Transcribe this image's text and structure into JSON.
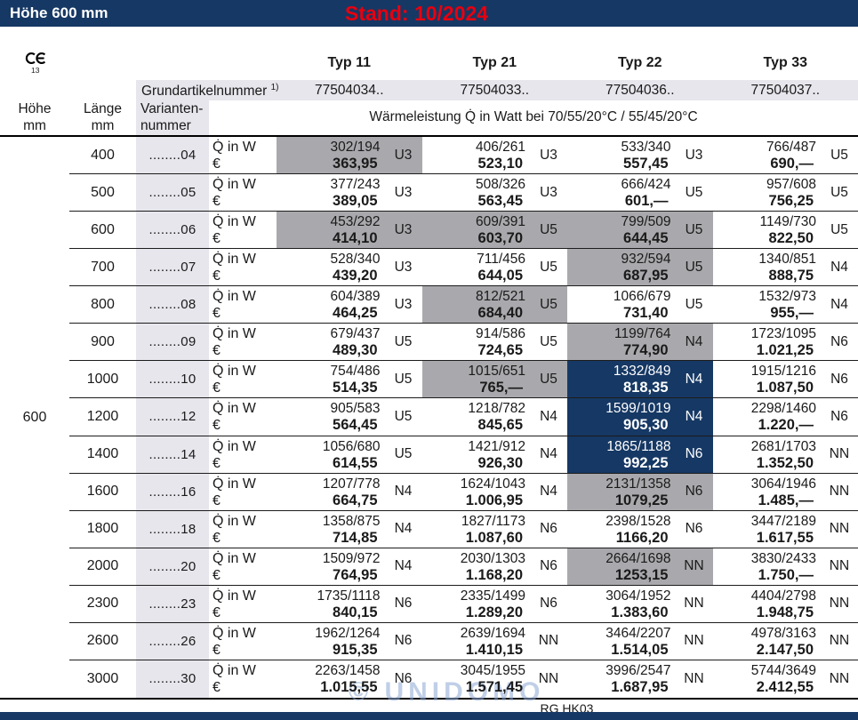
{
  "top_bar": {
    "title": "Höhe 600 mm",
    "stand": "Stand: 10/2024"
  },
  "ce_mark": {
    "number": "13"
  },
  "table": {
    "type_headers": [
      "Typ 11",
      "Typ 21",
      "Typ 22",
      "Typ 33"
    ],
    "grundartikelnummer": {
      "label": "Grundartikelnummer",
      "footnote": "1)",
      "values": [
        "77504034..",
        "77504033..",
        "77504036..",
        "77504037.."
      ]
    },
    "column_headers": {
      "hoehe": [
        "Höhe",
        "mm"
      ],
      "laenge": [
        "Länge",
        "mm"
      ],
      "variante": [
        "Varianten-",
        "nummer"
      ]
    },
    "performance_header": "Wärmeleistung Q̇ in Watt bei 70/55/20°C / 55/45/20°C",
    "row_labels": {
      "watt": "Q̇ in W",
      "euro": "€"
    },
    "hoehe_value": "600",
    "rows": [
      {
        "laenge": "400",
        "variante": "........04",
        "cells": [
          {
            "watt": "302/194",
            "price": "363,95",
            "code": "U3",
            "bg": "gray"
          },
          {
            "watt": "406/261",
            "price": "523,10",
            "code": "U3",
            "bg": "none"
          },
          {
            "watt": "533/340",
            "price": "557,45",
            "code": "U3",
            "bg": "none"
          },
          {
            "watt": "766/487",
            "price": "690,—",
            "code": "U5",
            "bg": "none"
          }
        ]
      },
      {
        "laenge": "500",
        "variante": "........05",
        "cells": [
          {
            "watt": "377/243",
            "price": "389,05",
            "code": "U3",
            "bg": "none"
          },
          {
            "watt": "508/326",
            "price": "563,45",
            "code": "U3",
            "bg": "none"
          },
          {
            "watt": "666/424",
            "price": "601,—",
            "code": "U5",
            "bg": "none"
          },
          {
            "watt": "957/608",
            "price": "756,25",
            "code": "U5",
            "bg": "none"
          }
        ]
      },
      {
        "laenge": "600",
        "variante": "........06",
        "cells": [
          {
            "watt": "453/292",
            "price": "414,10",
            "code": "U3",
            "bg": "gray"
          },
          {
            "watt": "609/391",
            "price": "603,70",
            "code": "U5",
            "bg": "gray"
          },
          {
            "watt": "799/509",
            "price": "644,45",
            "code": "U5",
            "bg": "gray"
          },
          {
            "watt": "1149/730",
            "price": "822,50",
            "code": "U5",
            "bg": "none"
          }
        ]
      },
      {
        "laenge": "700",
        "variante": "........07",
        "cells": [
          {
            "watt": "528/340",
            "price": "439,20",
            "code": "U3",
            "bg": "none"
          },
          {
            "watt": "711/456",
            "price": "644,05",
            "code": "U5",
            "bg": "none"
          },
          {
            "watt": "932/594",
            "price": "687,95",
            "code": "U5",
            "bg": "gray"
          },
          {
            "watt": "1340/851",
            "price": "888,75",
            "code": "N4",
            "bg": "none"
          }
        ]
      },
      {
        "laenge": "800",
        "variante": "........08",
        "cells": [
          {
            "watt": "604/389",
            "price": "464,25",
            "code": "U3",
            "bg": "none"
          },
          {
            "watt": "812/521",
            "price": "684,40",
            "code": "U5",
            "bg": "gray"
          },
          {
            "watt": "1066/679",
            "price": "731,40",
            "code": "U5",
            "bg": "none"
          },
          {
            "watt": "1532/973",
            "price": "955,—",
            "code": "N4",
            "bg": "none"
          }
        ]
      },
      {
        "laenge": "900",
        "variante": "........09",
        "cells": [
          {
            "watt": "679/437",
            "price": "489,30",
            "code": "U5",
            "bg": "none"
          },
          {
            "watt": "914/586",
            "price": "724,65",
            "code": "U5",
            "bg": "none"
          },
          {
            "watt": "1199/764",
            "price": "774,90",
            "code": "N4",
            "bg": "gray"
          },
          {
            "watt": "1723/1095",
            "price": "1.021,25",
            "code": "N6",
            "bg": "none"
          }
        ]
      },
      {
        "laenge": "1000",
        "variante": "........10",
        "cells": [
          {
            "watt": "754/486",
            "price": "514,35",
            "code": "U5",
            "bg": "none"
          },
          {
            "watt": "1015/651",
            "price": "765,—",
            "code": "U5",
            "bg": "gray"
          },
          {
            "watt": "1332/849",
            "price": "818,35",
            "code": "N4",
            "bg": "navy"
          },
          {
            "watt": "1915/1216",
            "price": "1.087,50",
            "code": "N6",
            "bg": "none"
          }
        ]
      },
      {
        "laenge": "1200",
        "variante": "........12",
        "cells": [
          {
            "watt": "905/583",
            "price": "564,45",
            "code": "U5",
            "bg": "none"
          },
          {
            "watt": "1218/782",
            "price": "845,65",
            "code": "N4",
            "bg": "none"
          },
          {
            "watt": "1599/1019",
            "price": "905,30",
            "code": "N4",
            "bg": "navy"
          },
          {
            "watt": "2298/1460",
            "price": "1.220,—",
            "code": "N6",
            "bg": "none"
          }
        ]
      },
      {
        "laenge": "1400",
        "variante": "........14",
        "cells": [
          {
            "watt": "1056/680",
            "price": "614,55",
            "code": "U5",
            "bg": "none"
          },
          {
            "watt": "1421/912",
            "price": "926,30",
            "code": "N4",
            "bg": "none"
          },
          {
            "watt": "1865/1188",
            "price": "992,25",
            "code": "N6",
            "bg": "navy"
          },
          {
            "watt": "2681/1703",
            "price": "1.352,50",
            "code": "NN",
            "bg": "none"
          }
        ]
      },
      {
        "laenge": "1600",
        "variante": "........16",
        "cells": [
          {
            "watt": "1207/778",
            "price": "664,75",
            "code": "N4",
            "bg": "none"
          },
          {
            "watt": "1624/1043",
            "price": "1.006,95",
            "code": "N4",
            "bg": "none"
          },
          {
            "watt": "2131/1358",
            "price": "1079,25",
            "code": "N6",
            "bg": "gray"
          },
          {
            "watt": "3064/1946",
            "price": "1.485,—",
            "code": "NN",
            "bg": "none"
          }
        ]
      },
      {
        "laenge": "1800",
        "variante": "........18",
        "cells": [
          {
            "watt": "1358/875",
            "price": "714,85",
            "code": "N4",
            "bg": "none"
          },
          {
            "watt": "1827/1173",
            "price": "1.087,60",
            "code": "N6",
            "bg": "none"
          },
          {
            "watt": "2398/1528",
            "price": "1166,20",
            "code": "N6",
            "bg": "none"
          },
          {
            "watt": "3447/2189",
            "price": "1.617,55",
            "code": "NN",
            "bg": "none"
          }
        ]
      },
      {
        "laenge": "2000",
        "variante": "........20",
        "cells": [
          {
            "watt": "1509/972",
            "price": "764,95",
            "code": "N4",
            "bg": "none"
          },
          {
            "watt": "2030/1303",
            "price": "1.168,20",
            "code": "N6",
            "bg": "none"
          },
          {
            "watt": "2664/1698",
            "price": "1253,15",
            "code": "NN",
            "bg": "gray"
          },
          {
            "watt": "3830/2433",
            "price": "1.750,—",
            "code": "NN",
            "bg": "none"
          }
        ]
      },
      {
        "laenge": "2300",
        "variante": "........23",
        "cells": [
          {
            "watt": "1735/1118",
            "price": "840,15",
            "code": "N6",
            "bg": "none"
          },
          {
            "watt": "2335/1499",
            "price": "1.289,20",
            "code": "N6",
            "bg": "none"
          },
          {
            "watt": "3064/1952",
            "price": "1.383,60",
            "code": "NN",
            "bg": "none"
          },
          {
            "watt": "4404/2798",
            "price": "1.948,75",
            "code": "NN",
            "bg": "none"
          }
        ]
      },
      {
        "laenge": "2600",
        "variante": "........26",
        "cells": [
          {
            "watt": "1962/1264",
            "price": "915,35",
            "code": "N6",
            "bg": "none"
          },
          {
            "watt": "2639/1694",
            "price": "1.410,15",
            "code": "NN",
            "bg": "none"
          },
          {
            "watt": "3464/2207",
            "price": "1.514,05",
            "code": "NN",
            "bg": "none"
          },
          {
            "watt": "4978/3163",
            "price": "2.147,50",
            "code": "NN",
            "bg": "none"
          }
        ]
      },
      {
        "laenge": "3000",
        "variante": "........30",
        "cells": [
          {
            "watt": "2263/1458",
            "price": "1.015,55",
            "code": "N6",
            "bg": "none"
          },
          {
            "watt": "3045/1955",
            "price": "1.571,45",
            "code": "NN",
            "bg": "none"
          },
          {
            "watt": "3996/2547",
            "price": "1.687,95",
            "code": "NN",
            "bg": "none"
          },
          {
            "watt": "5744/3649",
            "price": "2.412,55",
            "code": "NN",
            "bg": "none"
          }
        ]
      }
    ]
  },
  "footer": {
    "code": "RG HK03"
  },
  "watermark": "© UNIDOMO",
  "colors": {
    "navy": "#163864",
    "red": "#e8000f",
    "gray_highlight": "#a9a9ad",
    "light_gray": "#e6e6ec",
    "watermark": "#8ea9d4"
  }
}
